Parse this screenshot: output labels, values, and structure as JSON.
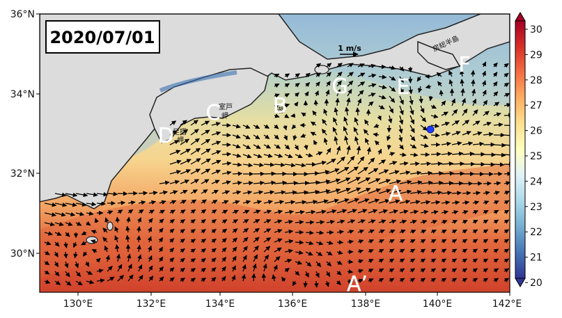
{
  "date": "2020/07/01",
  "scale_label": "1 m/s",
  "x_ticks": [
    "130°E",
    "132°E",
    "134°E",
    "136°E",
    "138°E",
    "140°E",
    "142°E"
  ],
  "y_ticks": [
    "36°N",
    "34°N",
    "32°N",
    "30°N"
  ],
  "colorbar_ticks": [
    "30",
    "29",
    "28",
    "27",
    "26",
    "25",
    "24",
    "23",
    "22",
    "21",
    "20"
  ],
  "place_labels": {
    "muroto": "室戸\n岬",
    "ashizuri": "足摺\n岬",
    "boso": "房総半島",
    "shiono": "潮"
  },
  "point_labels": {
    "A": "A",
    "A_prime": "A’",
    "B": "B",
    "C": "C",
    "D": "D",
    "E": "E",
    "F": "F",
    "G": "G"
  },
  "colors": {
    "land": "#dcdcdc",
    "marker": "#1f3cff"
  }
}
